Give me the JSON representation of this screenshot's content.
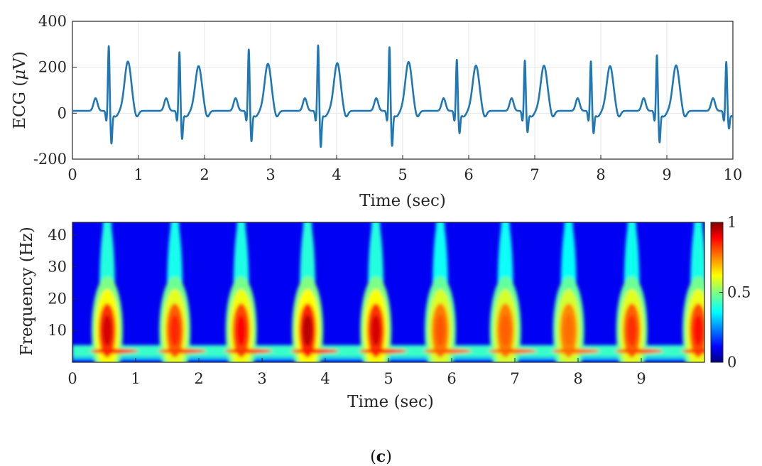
{
  "panel_label": {
    "open": "(",
    "letter": "c",
    "close": ")"
  },
  "colors": {
    "ecg_line": "#1f77b4",
    "grid": "#e6e6e6",
    "axis": "#262626"
  },
  "colorbar": {
    "ticks": [
      "0",
      "0.5",
      "1"
    ],
    "colormap": "jet"
  },
  "chart_data": [
    {
      "type": "line",
      "title": "",
      "xlabel": "Time (sec)",
      "ylabel_main": "ECG (",
      "ylabel_mu": "μ",
      "ylabel_unit": "V)",
      "xlim": [
        0,
        10
      ],
      "ylim": [
        -200,
        400
      ],
      "xticks": [
        "0",
        "1",
        "2",
        "3",
        "4",
        "5",
        "6",
        "7",
        "8",
        "9",
        "10"
      ],
      "yticks": [
        "-200",
        "0",
        "200",
        "400"
      ],
      "grid": true,
      "beats": [
        {
          "t": 0.55,
          "r": 295,
          "s": -125,
          "tw": 220
        },
        {
          "t": 1.62,
          "r": 268,
          "s": -105,
          "tw": 200
        },
        {
          "t": 2.67,
          "r": 280,
          "s": -115,
          "tw": 210
        },
        {
          "t": 3.72,
          "r": 298,
          "s": -140,
          "tw": 213
        },
        {
          "t": 4.8,
          "r": 290,
          "s": -135,
          "tw": 218
        },
        {
          "t": 5.82,
          "r": 235,
          "s": -80,
          "tw": 202
        },
        {
          "t": 6.85,
          "r": 232,
          "s": -75,
          "tw": 202
        },
        {
          "t": 7.85,
          "r": 228,
          "s": -80,
          "tw": 200
        },
        {
          "t": 8.85,
          "r": 255,
          "s": -120,
          "tw": 203
        },
        {
          "t": 9.9,
          "r": 225,
          "s": -60,
          "tw": 0
        }
      ],
      "baseline_start": 15
    },
    {
      "type": "heatmap",
      "title": "",
      "xlabel": "Time (sec)",
      "ylabel": "Frequency (Hz)",
      "xlim": [
        0,
        10
      ],
      "ylim": [
        0,
        44
      ],
      "xticks": [
        "0",
        "1",
        "2",
        "3",
        "4",
        "5",
        "6",
        "7",
        "8",
        "9"
      ],
      "yticks": [
        "10",
        "20",
        "30",
        "40"
      ],
      "zlim": [
        0,
        1
      ],
      "beat_times": [
        0.55,
        1.62,
        2.67,
        3.72,
        4.8,
        5.82,
        6.85,
        7.85,
        8.85,
        9.9
      ],
      "beat_peak_intensity": [
        0.95,
        0.8,
        0.88,
        1.0,
        0.95,
        0.7,
        0.68,
        0.65,
        0.78,
        0.85
      ],
      "low_band_hz": [
        1.5,
        4.2
      ]
    }
  ]
}
